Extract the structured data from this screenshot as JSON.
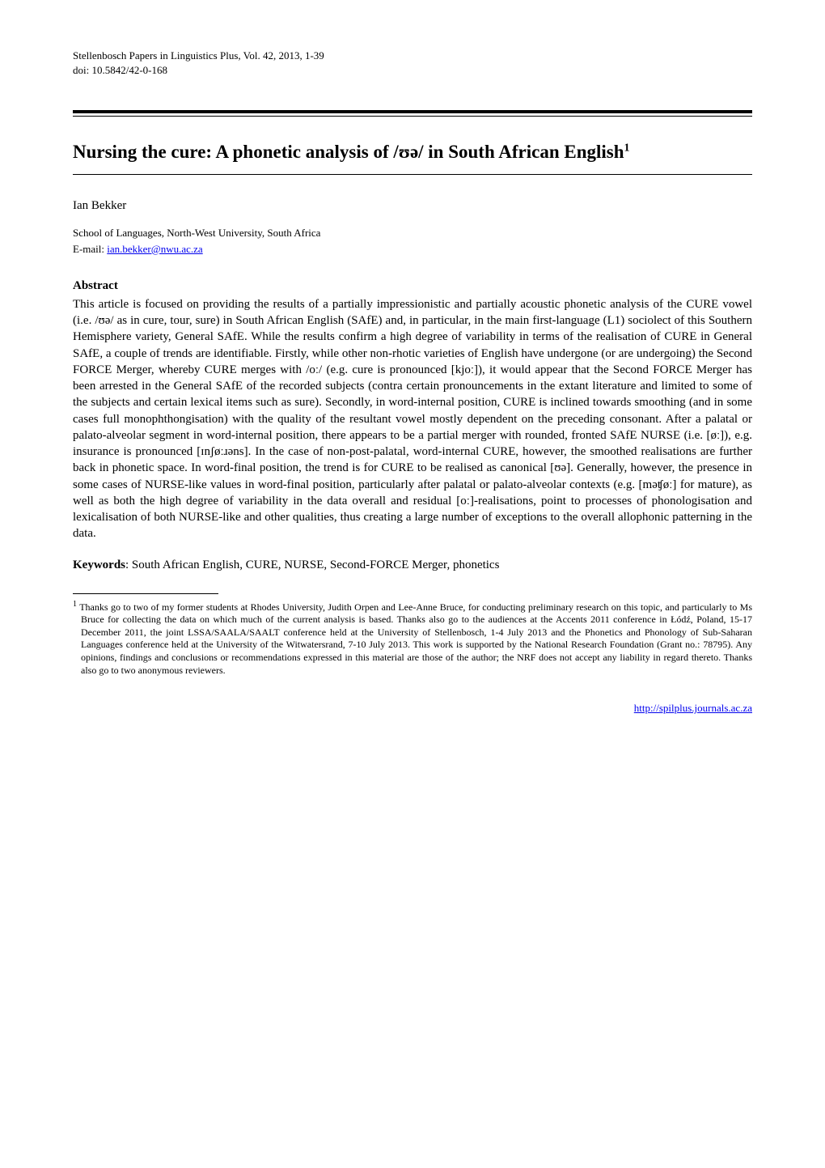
{
  "journal": {
    "line1": "Stellenbosch Papers in Linguistics Plus, Vol. 42, 2013, 1-39",
    "line2": "doi: 10.5842/42-0-168"
  },
  "title": "Nursing the cure: A phonetic analysis of /ʊə/ in South African English",
  "title_fn_marker": "1",
  "author": "Ian Bekker",
  "affiliation": "School of Languages, North-West University, South Africa",
  "email_prefix": "E-mail: ",
  "email": "ian.bekker@nwu.ac.za",
  "abstract": {
    "heading": "Abstract",
    "body": "This article is focused on providing the results of a partially impressionistic and partially acoustic phonetic analysis of the CURE vowel (i.e. /ʊə/ as in cure, tour, sure) in South African English (SAfE) and, in particular, in the main first-language (L1) sociolect of this Southern Hemisphere variety, General SAfE. While the results confirm a high degree of variability in terms of the realisation of CURE in General SAfE, a couple of trends are identifiable. Firstly, while other non-rhotic varieties of English have undergone (or are undergoing) the Second FORCE Merger, whereby CURE merges with /oː/ (e.g. cure is pronounced [kjoː]), it would appear that the Second FORCE Merger has been arrested in the General SAfE of the recorded subjects (contra certain pronouncements in the extant literature and limited to some of the subjects and certain lexical items such as sure). Secondly, in word-internal position, CURE is inclined towards smoothing (and in some cases full monophthongisation) with the quality of the resultant vowel mostly dependent on the preceding consonant. After a palatal or palato-alveolar segment in word-internal position, there appears to be a partial merger with rounded, fronted SAfE NURSE (i.e. [øː]), e.g. insurance is pronounced [ɪnʃøːɹəns]. In the case of non-post-palatal, word-internal CURE, however, the smoothed realisations are further back in phonetic space. In word-final position, the trend is for CURE to be realised as canonical [ʊə]. Generally, however, the presence in some cases of NURSE-like values in word-final position, particularly after palatal or palato-alveolar contexts (e.g. [məʧøː] for mature), as well as both the high degree of variability in the data overall and residual [oː]-realisations, point to processes of phonologisation and lexicalisation of both NURSE-like and other qualities, thus creating a large number of exceptions to the overall allophonic patterning in the data."
  },
  "keywords": {
    "label": "Keywords",
    "text": ": South African English, CURE, NURSE, Second-FORCE Merger, phonetics"
  },
  "footnote": {
    "marker": "1",
    "text": " Thanks go to two of my former students at Rhodes University, Judith Orpen and Lee-Anne Bruce, for conducting preliminary research on this topic, and particularly to Ms Bruce for collecting the data on which much of the current analysis is based. Thanks also go to the audiences at the Accents 2011 conference in Łódź, Poland, 15-17 December 2011, the joint LSSA/SAALA/SAALT conference held at the University of Stellenbosch, 1-4 July 2013 and the Phonetics and Phonology of Sub-Saharan Languages conference held at the University of the Witwatersrand, 7-10 July 2013. This work is supported by the National Research Foundation (Grant no.: 78795). Any opinions, findings and conclusions or recommendations expressed in this material are those of the author; the NRF does not accept any liability in regard thereto. Thanks also go to two anonymous reviewers."
  },
  "footer_url": "http://spilplus.journals.ac.za"
}
